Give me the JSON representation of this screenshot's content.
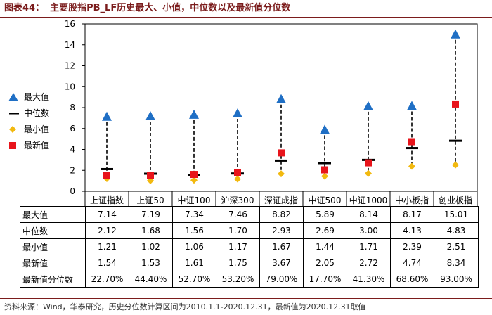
{
  "header": {
    "figure_no": "图表44：",
    "title": "主要股指PB_LF历史最大、小值，中位数以及最新值分位数"
  },
  "legend": [
    {
      "key": "max",
      "label": "最大值",
      "color": "#1f6fc5",
      "icon": "triangle"
    },
    {
      "key": "median",
      "label": "中位数",
      "color": "#000000",
      "icon": "dash"
    },
    {
      "key": "min",
      "label": "最小值",
      "color": "#f2b90f",
      "icon": "diamond"
    },
    {
      "key": "latest",
      "label": "最新值",
      "color": "#e8141b",
      "icon": "square"
    }
  ],
  "chart_data": {
    "type": "scatter",
    "title": "主要股指PB_LF历史最大、小值，中位数以及最新值分位数",
    "categories": [
      "上证指数",
      "上证50",
      "中证100",
      "沪深300",
      "深证成指",
      "中证500",
      "中证1000",
      "中小板指",
      "创业板指"
    ],
    "ylim": [
      0,
      16
    ],
    "yticks": [
      0,
      2,
      4,
      6,
      8,
      10,
      12,
      14,
      16
    ],
    "series": [
      {
        "name": "最大值",
        "values": [
          7.14,
          7.19,
          7.34,
          7.46,
          8.82,
          5.89,
          8.14,
          8.17,
          15.01
        ]
      },
      {
        "name": "中位数",
        "values": [
          2.12,
          1.68,
          1.56,
          1.7,
          2.93,
          2.69,
          3.0,
          4.13,
          4.83
        ]
      },
      {
        "name": "最小值",
        "values": [
          1.21,
          1.02,
          1.06,
          1.17,
          1.67,
          1.44,
          1.71,
          2.39,
          2.51
        ]
      },
      {
        "name": "最新值",
        "values": [
          1.54,
          1.53,
          1.61,
          1.75,
          3.67,
          2.05,
          2.72,
          4.74,
          8.34
        ]
      }
    ]
  },
  "table": {
    "rows": [
      {
        "label": "最大值",
        "cells": [
          "7.14",
          "7.19",
          "7.34",
          "7.46",
          "8.82",
          "5.89",
          "8.14",
          "8.17",
          "15.01"
        ]
      },
      {
        "label": "中位数",
        "cells": [
          "2.12",
          "1.68",
          "1.56",
          "1.70",
          "2.93",
          "2.69",
          "3.00",
          "4.13",
          "4.83"
        ]
      },
      {
        "label": "最小值",
        "cells": [
          "1.21",
          "1.02",
          "1.06",
          "1.17",
          "1.67",
          "1.44",
          "1.71",
          "2.39",
          "2.51"
        ]
      },
      {
        "label": "最新值",
        "cells": [
          "1.54",
          "1.53",
          "1.61",
          "1.75",
          "3.67",
          "2.05",
          "2.72",
          "4.74",
          "8.34"
        ]
      },
      {
        "label": "最新值分位数",
        "cells": [
          "22.70%",
          "44.40%",
          "52.70%",
          "53.20%",
          "79.00%",
          "17.70%",
          "41.30%",
          "68.60%",
          "93.00%"
        ]
      }
    ]
  },
  "footer": {
    "source": "资料来源：Wind，华泰研究，历史分位数计算区间为2010.1.1-2020.12.31，最新值为2020.12.31取值"
  }
}
